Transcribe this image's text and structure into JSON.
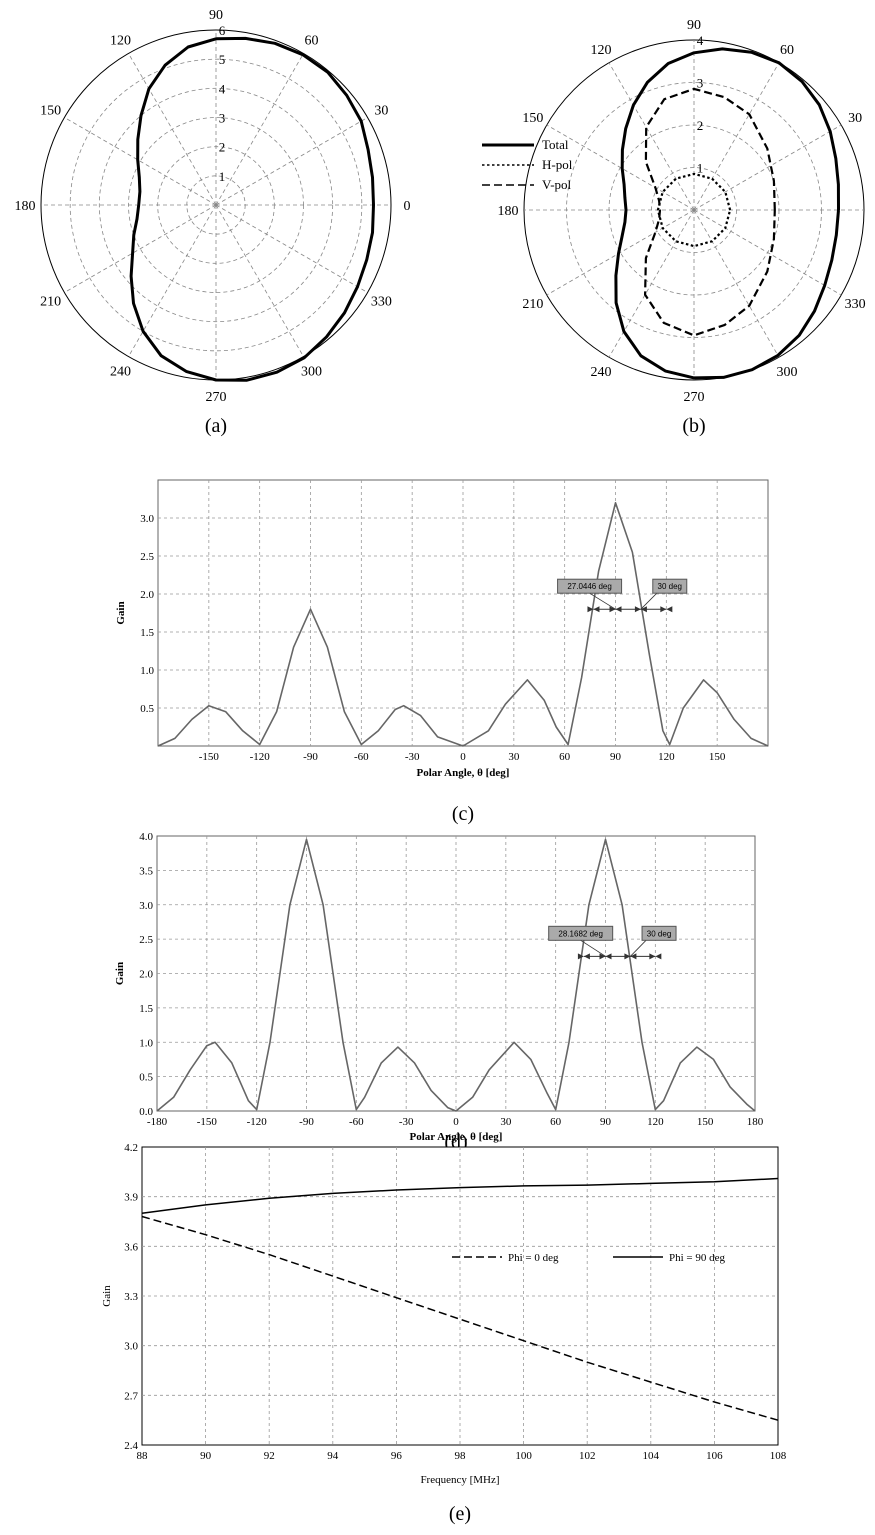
{
  "chart_data": [
    {
      "type": "line",
      "polar": true,
      "caption": "(a)",
      "angle_ticks": [
        "0",
        "30",
        "60",
        "90",
        "120",
        "150",
        "180",
        "210",
        "240",
        "270",
        "300",
        "330"
      ],
      "radial_ticks": [
        "1",
        "2",
        "3",
        "4",
        "5",
        "6"
      ],
      "rmax": 6,
      "series": [
        {
          "style": "solid",
          "points": [
            [
              0,
              5.4
            ],
            [
              10,
              5.45
            ],
            [
              20,
              5.55
            ],
            [
              30,
              5.75
            ],
            [
              40,
              5.85
            ],
            [
              50,
              5.95
            ],
            [
              60,
              5.95
            ],
            [
              70,
              5.9
            ],
            [
              80,
              5.8
            ],
            [
              90,
              5.7
            ],
            [
              100,
              5.5
            ],
            [
              110,
              5.1
            ],
            [
              120,
              4.6
            ],
            [
              130,
              4.0
            ],
            [
              140,
              3.5
            ],
            [
              150,
              3.1
            ],
            [
              160,
              2.8
            ],
            [
              170,
              2.65
            ],
            [
              180,
              2.65
            ],
            [
              190,
              2.75
            ],
            [
              200,
              3.0
            ],
            [
              210,
              3.3
            ],
            [
              220,
              3.8
            ],
            [
              230,
              4.4
            ],
            [
              240,
              5.0
            ],
            [
              250,
              5.5
            ],
            [
              260,
              5.8
            ],
            [
              270,
              6.0
            ],
            [
              280,
              6.1
            ],
            [
              290,
              6.1
            ],
            [
              300,
              6.05
            ],
            [
              310,
              5.9
            ],
            [
              320,
              5.75
            ],
            [
              330,
              5.6
            ],
            [
              340,
              5.5
            ],
            [
              350,
              5.45
            ],
            [
              360,
              5.4
            ]
          ]
        }
      ]
    },
    {
      "type": "line",
      "polar": true,
      "caption": "(b)",
      "angle_ticks": [
        "0",
        "30",
        "60",
        "90",
        "120",
        "150",
        "180",
        "210",
        "240",
        "270",
        "300",
        "330"
      ],
      "radial_ticks": [
        "1",
        "2",
        "3",
        "4"
      ],
      "rmax": 4,
      "legend": [
        "Total",
        "H-pol",
        "V-pol"
      ],
      "series": [
        {
          "name": "Total",
          "style": "solid",
          "points": [
            [
              0,
              3.4
            ],
            [
              10,
              3.45
            ],
            [
              20,
              3.55
            ],
            [
              30,
              3.7
            ],
            [
              40,
              3.85
            ],
            [
              50,
              3.95
            ],
            [
              60,
              4.0
            ],
            [
              70,
              3.95
            ],
            [
              80,
              3.85
            ],
            [
              90,
              3.7
            ],
            [
              100,
              3.5
            ],
            [
              110,
              3.2
            ],
            [
              120,
              2.85
            ],
            [
              130,
              2.5
            ],
            [
              140,
              2.2
            ],
            [
              150,
              1.95
            ],
            [
              160,
              1.75
            ],
            [
              170,
              1.65
            ],
            [
              180,
              1.6
            ],
            [
              190,
              1.65
            ],
            [
              200,
              1.8
            ],
            [
              210,
              2.05
            ],
            [
              220,
              2.4
            ],
            [
              230,
              2.85
            ],
            [
              240,
              3.3
            ],
            [
              250,
              3.65
            ],
            [
              260,
              3.85
            ],
            [
              270,
              3.95
            ],
            [
              280,
              4.0
            ],
            [
              290,
              4.0
            ],
            [
              300,
              3.95
            ],
            [
              310,
              3.85
            ],
            [
              320,
              3.7
            ],
            [
              330,
              3.55
            ],
            [
              340,
              3.45
            ],
            [
              350,
              3.4
            ],
            [
              360,
              3.4
            ]
          ]
        },
        {
          "name": "V-pol",
          "style": "dashed",
          "points": [
            [
              0,
              1.9
            ],
            [
              20,
              2.0
            ],
            [
              40,
              2.25
            ],
            [
              60,
              2.6
            ],
            [
              75,
              2.75
            ],
            [
              90,
              2.85
            ],
            [
              105,
              2.7
            ],
            [
              120,
              2.25
            ],
            [
              135,
              1.6
            ],
            [
              150,
              1.05
            ],
            [
              165,
              0.85
            ],
            [
              180,
              0.8
            ],
            [
              195,
              0.85
            ],
            [
              210,
              1.05
            ],
            [
              225,
              1.6
            ],
            [
              240,
              2.3
            ],
            [
              255,
              2.75
            ],
            [
              270,
              2.95
            ],
            [
              285,
              2.8
            ],
            [
              300,
              2.6
            ],
            [
              320,
              2.25
            ],
            [
              340,
              2.0
            ],
            [
              360,
              1.9
            ]
          ]
        },
        {
          "name": "H-pol",
          "style": "dotted",
          "points": [
            [
              0,
              0.85
            ],
            [
              30,
              0.85
            ],
            [
              60,
              0.85
            ],
            [
              90,
              0.85
            ],
            [
              120,
              0.85
            ],
            [
              150,
              0.85
            ],
            [
              180,
              0.85
            ],
            [
              210,
              0.85
            ],
            [
              240,
              0.85
            ],
            [
              270,
              0.85
            ],
            [
              300,
              0.85
            ],
            [
              330,
              0.85
            ],
            [
              360,
              0.85
            ]
          ]
        }
      ]
    },
    {
      "type": "line",
      "caption": "(c)",
      "xlabel": "Polar Angle, θ [deg]",
      "ylabel": "Gain",
      "xlim": [
        -180,
        180
      ],
      "ylim": [
        0,
        3.5
      ],
      "xticks": [
        -150,
        -120,
        -90,
        -60,
        -30,
        0,
        30,
        60,
        90,
        120,
        150
      ],
      "xtick_labels": [
        "-150",
        "-120",
        "-90",
        "-60",
        "-30",
        "0",
        "30",
        "60",
        "90",
        "120",
        "150"
      ],
      "yticks": [
        0.5,
        1.0,
        1.5,
        2.0,
        2.5,
        3.0
      ],
      "ytick_labels": [
        "0.5",
        "1.0",
        "1.5",
        "2.0",
        "2.5",
        "3.0"
      ],
      "grid": true,
      "annotations": [
        {
          "label": "27.0446 deg",
          "x": 90,
          "y": 1.8
        },
        {
          "label": "30 deg",
          "x": 120,
          "y": 1.8
        }
      ],
      "series": [
        {
          "points": [
            [
              -180,
              0
            ],
            [
              -170,
              0.1
            ],
            [
              -160,
              0.35
            ],
            [
              -150,
              0.53
            ],
            [
              -140,
              0.45
            ],
            [
              -130,
              0.2
            ],
            [
              -120,
              0.02
            ],
            [
              -110,
              0.45
            ],
            [
              -100,
              1.3
            ],
            [
              -90,
              1.8
            ],
            [
              -80,
              1.3
            ],
            [
              -70,
              0.45
            ],
            [
              -60,
              0.02
            ],
            [
              -50,
              0.2
            ],
            [
              -40,
              0.48
            ],
            [
              -35,
              0.53
            ],
            [
              -25,
              0.4
            ],
            [
              -15,
              0.12
            ],
            [
              0,
              0
            ],
            [
              15,
              0.2
            ],
            [
              25,
              0.55
            ],
            [
              38,
              0.87
            ],
            [
              48,
              0.6
            ],
            [
              55,
              0.25
            ],
            [
              62,
              0.02
            ],
            [
              70,
              0.9
            ],
            [
              80,
              2.3
            ],
            [
              90,
              3.2
            ],
            [
              100,
              2.55
            ],
            [
              110,
              1.2
            ],
            [
              118,
              0.2
            ],
            [
              122,
              0.02
            ],
            [
              130,
              0.5
            ],
            [
              142,
              0.87
            ],
            [
              150,
              0.7
            ],
            [
              160,
              0.35
            ],
            [
              170,
              0.1
            ],
            [
              180,
              0
            ]
          ]
        }
      ]
    },
    {
      "type": "line",
      "caption": "(d)",
      "xlabel": "Polar Angle, θ [deg]",
      "ylabel": "Gain",
      "xlim": [
        -180,
        180
      ],
      "ylim": [
        0,
        4
      ],
      "xticks": [
        -180,
        -150,
        -120,
        -90,
        -60,
        -30,
        0,
        30,
        60,
        90,
        120,
        150,
        180
      ],
      "xtick_labels": [
        "-180",
        "-150",
        "-120",
        "-90",
        "-60",
        "-30",
        "0",
        "30",
        "60",
        "90",
        "120",
        "150",
        "180"
      ],
      "yticks": [
        0,
        0.5,
        1.0,
        1.5,
        2.0,
        2.5,
        3.0,
        3.5,
        4.0
      ],
      "ytick_labels": [
        "0.0",
        "0.5",
        "1.0",
        "1.5",
        "2.0",
        "2.5",
        "3.0",
        "3.5",
        "4.0"
      ],
      "grid": true,
      "annotations": [
        {
          "label": "28.1682 deg",
          "x": 90,
          "y": 2.25
        },
        {
          "label": "30 deg",
          "x": 120,
          "y": 2.25
        }
      ],
      "series": [
        {
          "points": [
            [
              -180,
              0
            ],
            [
              -170,
              0.2
            ],
            [
              -160,
              0.6
            ],
            [
              -150,
              0.95
            ],
            [
              -145,
              1.0
            ],
            [
              -135,
              0.7
            ],
            [
              -125,
              0.15
            ],
            [
              -120,
              0.02
            ],
            [
              -112,
              1.0
            ],
            [
              -100,
              3.0
            ],
            [
              -90,
              3.95
            ],
            [
              -80,
              3.0
            ],
            [
              -68,
              1.0
            ],
            [
              -60,
              0.02
            ],
            [
              -55,
              0.2
            ],
            [
              -45,
              0.7
            ],
            [
              -35,
              0.93
            ],
            [
              -25,
              0.7
            ],
            [
              -15,
              0.3
            ],
            [
              -5,
              0.05
            ],
            [
              0,
              0
            ],
            [
              10,
              0.2
            ],
            [
              20,
              0.6
            ],
            [
              35,
              1.0
            ],
            [
              45,
              0.75
            ],
            [
              55,
              0.25
            ],
            [
              60,
              0.02
            ],
            [
              68,
              1.0
            ],
            [
              80,
              3.0
            ],
            [
              90,
              3.95
            ],
            [
              100,
              3.0
            ],
            [
              112,
              1.0
            ],
            [
              120,
              0.02
            ],
            [
              125,
              0.15
            ],
            [
              135,
              0.7
            ],
            [
              145,
              0.93
            ],
            [
              155,
              0.75
            ],
            [
              165,
              0.35
            ],
            [
              175,
              0.1
            ],
            [
              180,
              0
            ]
          ]
        }
      ]
    },
    {
      "type": "line",
      "caption": "(e)",
      "xlabel": "Frequency [MHz]",
      "ylabel": "Gain",
      "xlim": [
        88,
        108
      ],
      "ylim": [
        2.4,
        4.2
      ],
      "xticks": [
        88,
        90,
        92,
        94,
        96,
        98,
        100,
        102,
        104,
        106,
        108
      ],
      "xtick_labels": [
        "88",
        "90",
        "92",
        "94",
        "96",
        "98",
        "100",
        "102",
        "104",
        "106",
        "108"
      ],
      "yticks": [
        2.4,
        2.7,
        3.0,
        3.3,
        3.6,
        3.9,
        4.2
      ],
      "ytick_labels": [
        "2.4",
        "2.7",
        "3.0",
        "3.3",
        "3.6",
        "3.9",
        "4.2"
      ],
      "grid": true,
      "legend": [
        "Phi = 0 deg",
        "Phi = 90 deg"
      ],
      "series": [
        {
          "name": "Phi = 0 deg",
          "style": "dashed",
          "points": [
            [
              88,
              3.78
            ],
            [
              90,
              3.67
            ],
            [
              92,
              3.55
            ],
            [
              94,
              3.42
            ],
            [
              96,
              3.29
            ],
            [
              98,
              3.16
            ],
            [
              100,
              3.03
            ],
            [
              102,
              2.9
            ],
            [
              104,
              2.78
            ],
            [
              106,
              2.66
            ],
            [
              108,
              2.55
            ]
          ]
        },
        {
          "name": "Phi = 90 deg",
          "style": "solid",
          "points": [
            [
              88,
              3.8
            ],
            [
              90,
              3.85
            ],
            [
              92,
              3.89
            ],
            [
              94,
              3.92
            ],
            [
              96,
              3.94
            ],
            [
              98,
              3.955
            ],
            [
              100,
              3.965
            ],
            [
              102,
              3.97
            ],
            [
              104,
              3.98
            ],
            [
              106,
              3.99
            ],
            [
              108,
              4.01
            ]
          ]
        }
      ]
    }
  ]
}
